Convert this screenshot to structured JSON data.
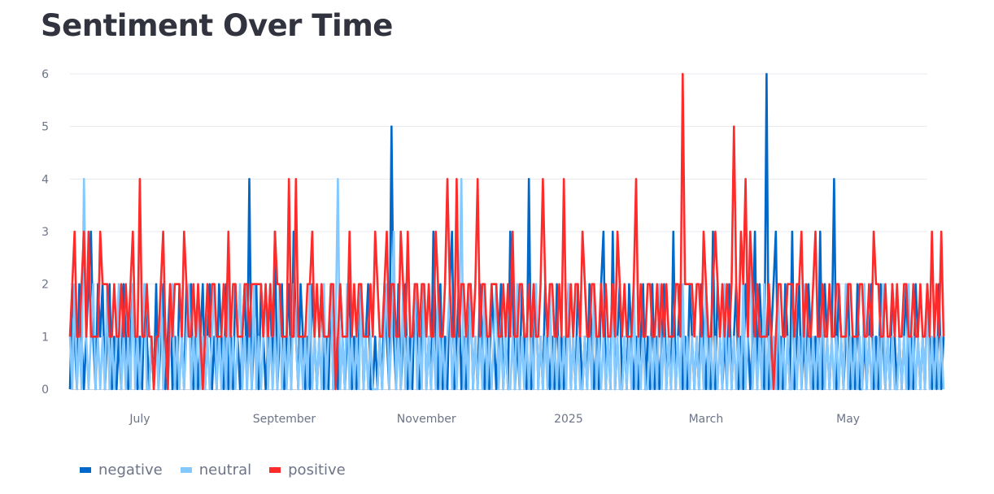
{
  "chart_data": {
    "type": "line",
    "title": "Sentiment Over Time",
    "xlabel": "",
    "ylabel": "",
    "x_start": "2024-06-01",
    "x_end": "2025-06-04",
    "ylim": [
      0,
      6
    ],
    "yticks": [
      0,
      1,
      2,
      3,
      4,
      5,
      6
    ],
    "xticks": [
      {
        "label": "July",
        "date": "2024-07-01"
      },
      {
        "label": "September",
        "date": "2024-09-01"
      },
      {
        "label": "November",
        "date": "2024-11-01"
      },
      {
        "label": "2025",
        "date": "2025-01-01"
      },
      {
        "label": "March",
        "date": "2025-03-01"
      },
      {
        "label": "May",
        "date": "2025-05-01"
      }
    ],
    "grid": true,
    "legend_position": "bottom-left",
    "series": [
      {
        "name": "negative",
        "color": "#0068c9",
        "values": [
          0,
          2,
          1,
          0,
          2,
          1,
          0,
          1,
          2,
          3,
          1,
          0,
          2,
          1,
          2,
          0,
          1,
          2,
          0,
          1,
          0,
          1,
          0,
          2,
          1,
          0,
          1,
          2,
          1,
          0,
          1,
          0,
          2,
          1,
          0,
          1,
          0,
          2,
          0,
          1,
          2,
          0,
          1,
          2,
          0,
          1,
          0,
          2,
          1,
          0,
          2,
          1,
          2,
          0,
          1,
          0,
          1,
          2,
          0,
          1,
          2,
          0,
          1,
          0,
          2,
          1,
          0,
          2,
          0,
          1,
          0,
          2,
          1,
          0,
          1,
          2,
          0,
          4,
          0,
          1,
          2,
          0,
          2,
          1,
          0,
          1,
          2,
          0,
          3,
          0,
          1,
          2,
          0,
          1,
          2,
          0,
          3,
          1,
          0,
          2,
          1,
          0,
          1,
          0,
          2,
          1,
          0,
          1,
          2,
          0,
          1,
          0,
          2,
          0,
          1,
          0,
          2,
          1,
          0,
          1,
          2,
          0,
          1,
          0,
          1,
          2,
          0,
          1,
          2,
          0,
          0,
          1,
          0,
          1,
          0,
          2,
          1,
          0,
          5,
          1,
          0,
          2,
          0,
          1,
          2,
          0,
          1,
          0,
          2,
          1,
          0,
          1,
          2,
          0,
          1,
          0,
          3,
          1,
          0,
          2,
          0,
          1,
          0,
          2,
          3,
          0,
          1,
          2,
          0,
          1,
          0,
          1,
          2,
          0,
          1,
          0,
          2,
          1,
          0,
          1,
          0,
          2,
          1,
          0,
          1,
          2,
          0,
          1,
          0,
          3,
          2,
          0,
          1,
          0,
          2,
          1,
          0,
          4,
          0,
          1,
          2,
          0,
          1,
          0,
          2,
          1,
          0,
          1,
          0,
          2,
          0,
          1,
          0,
          1,
          2,
          0,
          1,
          0,
          2,
          1,
          0,
          1,
          0,
          2,
          1,
          0,
          1,
          0,
          2,
          3,
          0,
          1,
          0,
          3,
          0,
          1,
          2,
          0,
          1,
          0,
          2,
          1,
          0,
          1,
          0,
          1,
          2,
          0,
          1,
          0,
          2,
          0,
          1,
          0,
          1,
          2,
          0,
          1,
          0,
          3,
          0,
          1,
          2,
          0,
          1,
          0,
          2,
          1,
          0,
          1,
          0,
          2,
          1,
          0,
          1,
          0,
          3,
          0,
          2,
          1,
          0,
          1,
          0,
          2,
          0,
          1,
          2,
          0,
          1,
          0,
          2,
          1,
          0,
          1,
          3,
          0,
          2,
          1,
          0,
          6,
          0,
          1,
          2,
          3,
          0,
          1,
          0,
          2,
          1,
          0,
          3,
          0,
          1,
          2,
          0,
          1,
          0,
          2,
          1,
          0,
          1,
          0,
          3,
          0,
          2,
          1,
          0,
          1,
          4,
          0,
          2,
          1,
          0,
          1,
          2,
          0,
          1,
          0,
          2,
          0,
          0,
          1,
          0,
          1,
          2,
          0,
          1,
          0,
          2,
          1,
          0,
          1,
          0,
          2,
          1,
          0,
          1,
          0,
          1,
          2,
          0,
          1,
          0,
          2,
          1,
          0,
          1,
          0,
          2,
          1,
          0,
          1,
          0,
          2,
          0,
          1
        ]
      },
      {
        "name": "neutral",
        "color": "#83c9ff",
        "values": [
          1,
          0,
          2,
          0,
          1,
          0,
          4,
          1,
          0,
          1,
          2,
          0,
          1,
          0,
          1,
          0,
          2,
          0,
          1,
          0,
          1,
          2,
          0,
          1,
          0,
          1,
          0,
          2,
          0,
          1,
          0,
          1,
          2,
          0,
          0,
          1,
          0,
          1,
          0,
          2,
          0,
          1,
          0,
          1,
          2,
          0,
          1,
          0,
          1,
          0,
          1,
          2,
          0,
          1,
          0,
          2,
          0,
          1,
          0,
          1,
          0,
          1,
          2,
          0,
          1,
          0,
          1,
          0,
          2,
          0,
          1,
          0,
          1,
          2,
          0,
          1,
          0,
          1,
          0,
          2,
          0,
          1,
          0,
          1,
          2,
          0,
          1,
          0,
          1,
          0,
          2,
          0,
          1,
          0,
          1,
          0,
          2,
          1,
          0,
          1,
          0,
          1,
          0,
          2,
          0,
          1,
          0,
          1,
          0,
          2,
          0,
          1,
          2,
          0,
          1,
          4,
          0,
          1,
          0,
          2,
          0,
          1,
          0,
          1,
          0,
          2,
          0,
          1,
          0,
          1,
          0,
          0,
          0,
          1,
          0,
          1,
          2,
          0,
          1,
          3,
          0,
          1,
          0,
          2,
          0,
          1,
          0,
          1,
          2,
          0,
          1,
          0,
          2,
          0,
          1,
          0,
          1,
          0,
          2,
          0,
          1,
          0,
          1,
          2,
          0,
          1,
          0,
          1,
          4,
          0,
          1,
          0,
          2,
          0,
          1,
          0,
          1,
          0,
          2,
          0,
          1,
          0,
          1,
          2,
          0,
          1,
          0,
          1,
          0,
          0,
          1,
          0,
          2,
          0,
          1,
          0,
          1,
          0,
          1,
          0,
          2,
          0,
          1,
          0,
          1,
          0,
          2,
          0,
          1,
          0,
          1,
          0,
          1,
          0,
          2,
          0,
          1,
          0,
          1,
          0,
          0,
          1,
          0,
          1,
          0,
          2,
          0,
          1,
          0,
          1,
          0,
          1,
          0,
          2,
          0,
          1,
          0,
          0,
          1,
          0,
          1,
          0,
          2,
          0,
          1,
          0,
          1,
          0,
          0,
          1,
          0,
          1,
          0,
          2,
          0,
          1,
          0,
          1,
          0,
          1,
          0,
          1,
          0,
          2,
          0,
          1,
          0,
          1,
          0,
          1,
          0,
          1,
          0,
          2,
          0,
          1,
          0,
          1,
          0,
          1,
          0,
          2,
          0,
          1,
          0,
          1,
          0,
          1,
          0,
          2,
          0,
          1,
          3,
          0,
          1,
          0,
          1,
          0,
          2,
          0,
          1,
          0,
          1,
          0,
          2,
          0,
          1,
          0,
          1,
          0,
          0,
          1,
          0,
          1,
          0,
          2,
          0,
          1,
          0,
          1,
          0,
          1,
          0,
          2,
          0,
          1,
          0,
          1,
          0,
          1,
          0,
          1,
          0,
          2,
          0,
          1,
          0,
          1,
          0,
          1,
          0,
          2,
          0,
          1,
          0,
          1,
          0,
          1,
          0,
          2,
          0,
          1,
          0,
          1,
          0,
          0,
          1,
          0,
          1,
          0,
          2,
          0,
          1,
          0,
          1,
          0,
          1,
          0,
          2,
          0,
          1,
          0,
          1,
          0,
          1,
          0
        ]
      },
      {
        "name": "positive",
        "color": "#ff2b2b",
        "values": [
          1,
          2,
          3,
          1,
          1,
          2,
          3,
          1,
          3,
          1,
          1,
          1,
          1,
          3,
          2,
          2,
          2,
          1,
          1,
          2,
          1,
          1,
          2,
          1,
          2,
          1,
          2,
          3,
          1,
          1,
          4,
          1,
          1,
          2,
          1,
          1,
          0,
          1,
          1,
          2,
          3,
          1,
          0,
          2,
          1,
          2,
          2,
          2,
          1,
          3,
          2,
          1,
          1,
          2,
          1,
          2,
          1,
          0,
          1,
          2,
          1,
          2,
          2,
          1,
          1,
          1,
          2,
          1,
          3,
          1,
          2,
          2,
          1,
          1,
          1,
          2,
          2,
          1,
          2,
          2,
          2,
          2,
          2,
          1,
          2,
          1,
          2,
          1,
          3,
          2,
          2,
          1,
          1,
          1,
          4,
          1,
          1,
          4,
          1,
          1,
          1,
          1,
          2,
          2,
          3,
          1,
          2,
          1,
          2,
          1,
          1,
          1,
          2,
          2,
          0,
          1,
          2,
          1,
          1,
          1,
          3,
          1,
          2,
          1,
          2,
          2,
          1,
          1,
          1,
          2,
          1,
          3,
          2,
          1,
          1,
          2,
          3,
          1,
          2,
          2,
          1,
          1,
          3,
          2,
          1,
          3,
          1,
          1,
          2,
          2,
          1,
          2,
          2,
          1,
          2,
          1,
          1,
          3,
          2,
          1,
          1,
          2,
          4,
          2,
          1,
          1,
          4,
          1,
          2,
          2,
          1,
          2,
          2,
          1,
          2,
          4,
          1,
          2,
          2,
          1,
          1,
          2,
          2,
          2,
          1,
          1,
          2,
          1,
          2,
          1,
          3,
          1,
          1,
          2,
          2,
          1,
          1,
          2,
          1,
          2,
          1,
          1,
          2,
          4,
          2,
          1,
          2,
          2,
          1,
          1,
          2,
          1,
          4,
          1,
          1,
          2,
          1,
          2,
          2,
          1,
          3,
          2,
          1,
          1,
          2,
          2,
          1,
          1,
          2,
          1,
          2,
          1,
          1,
          2,
          1,
          3,
          2,
          1,
          2,
          1,
          1,
          1,
          2,
          4,
          1,
          2,
          1,
          1,
          2,
          2,
          1,
          1,
          2,
          1,
          2,
          1,
          2,
          1,
          1,
          1,
          2,
          2,
          1,
          6,
          2,
          2,
          2,
          2,
          1,
          2,
          2,
          1,
          3,
          2,
          1,
          1,
          2,
          3,
          2,
          1,
          2,
          1,
          2,
          1,
          2,
          5,
          2,
          1,
          3,
          2,
          4,
          1,
          3,
          2,
          1,
          2,
          1,
          1,
          1,
          1,
          2,
          1,
          0,
          1,
          2,
          2,
          1,
          1,
          2,
          2,
          2,
          1,
          2,
          2,
          3,
          1,
          2,
          1,
          1,
          2,
          3,
          1,
          1,
          2,
          1,
          1,
          2,
          1,
          1,
          2,
          2,
          1,
          1,
          1,
          2,
          2,
          1,
          1,
          1,
          2,
          2,
          1,
          1,
          2,
          1,
          3,
          2,
          2,
          1,
          1,
          2,
          1,
          1,
          2,
          1,
          2,
          1,
          1,
          2,
          2,
          1,
          1,
          2,
          1,
          1,
          2,
          1,
          1,
          2,
          1,
          3,
          1,
          2,
          1,
          3,
          1
        ]
      }
    ]
  }
}
